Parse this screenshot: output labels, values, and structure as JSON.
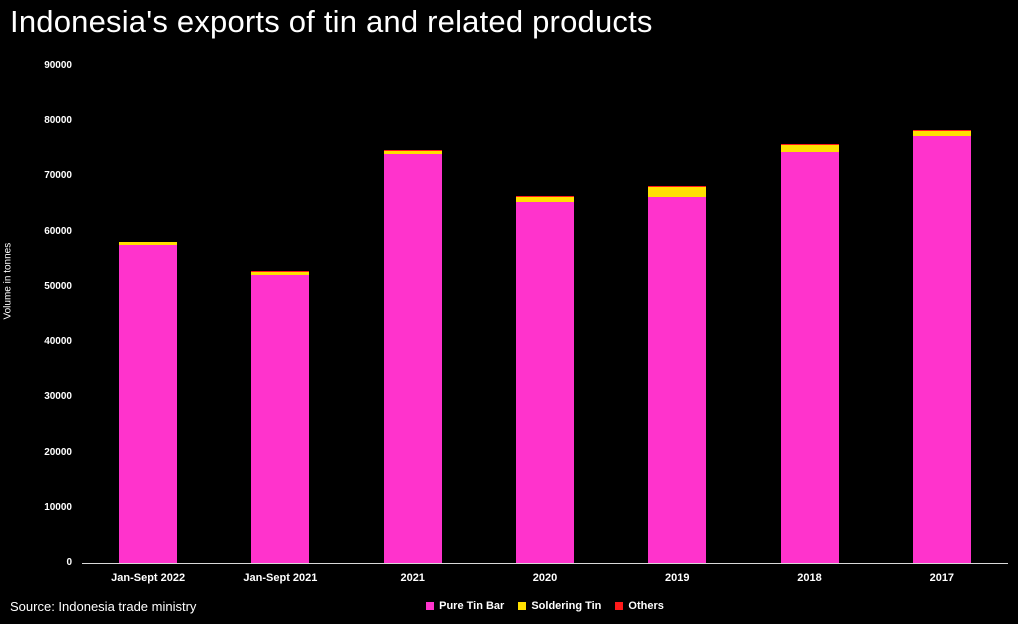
{
  "title": "Indonesia's exports of tin and related products",
  "source": "Source: Indonesia trade ministry",
  "chart_data": {
    "type": "bar",
    "stacked": true,
    "title": "Indonesia's exports of tin and related products",
    "categories": [
      "Jan-Sept 2022",
      "Jan-Sept 2021",
      "2021",
      "2020",
      "2019",
      "2018",
      "2017"
    ],
    "series": [
      {
        "name": "Pure Tin Bar",
        "color": "#ff33cc",
        "values": [
          57500,
          52100,
          74100,
          65400,
          66300,
          74500,
          77400
        ]
      },
      {
        "name": "Soldering Tin",
        "color": "#ffe000",
        "values": [
          600,
          600,
          600,
          900,
          1800,
          1200,
          900
        ]
      },
      {
        "name": "Others",
        "color": "#ff1a1a",
        "values": [
          100,
          100,
          150,
          100,
          100,
          100,
          150
        ]
      }
    ],
    "xlabel": "",
    "ylabel": "Volume in tonnes",
    "ylim": [
      0,
      90000
    ],
    "ytick_step": 10000,
    "grid": false,
    "legend_position": "bottom",
    "background": "#000000"
  }
}
